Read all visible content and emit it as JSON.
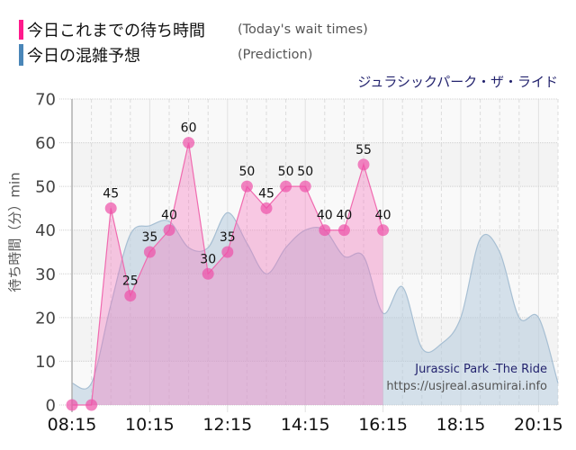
{
  "legend": {
    "items": [
      {
        "label": "今日これまでの待ち時間",
        "label_en": "(Today's wait times)",
        "color": "#ff1a8c"
      },
      {
        "label": "今日の混雑予想",
        "label_en": "(Prediction)",
        "color": "#4a86b8"
      }
    ]
  },
  "chart_data": {
    "type": "area",
    "title": "ジュラシックパーク・ザ・ライド",
    "xlabel": "",
    "ylabel": "待ち時間（分）min",
    "ylim": [
      0,
      70
    ],
    "yticks": [
      0,
      10,
      20,
      30,
      40,
      50,
      60,
      70
    ],
    "xticks": [
      "08:15",
      "10:15",
      "12:15",
      "14:15",
      "16:15",
      "18:15",
      "20:15"
    ],
    "x": [
      "08:15",
      "08:45",
      "09:15",
      "09:45",
      "10:15",
      "10:45",
      "11:15",
      "11:45",
      "12:15",
      "12:45",
      "13:15",
      "13:45",
      "14:15",
      "14:45",
      "15:15",
      "15:45",
      "16:15",
      "16:45",
      "17:15",
      "17:45",
      "18:15",
      "18:45",
      "19:15",
      "19:45",
      "20:15",
      "20:45"
    ],
    "grid": true,
    "legend_position": "top-left",
    "series": [
      {
        "name": "今日これまでの待ち時間 (Today's wait times)",
        "line_color": "#f06aaf",
        "fill_color": "rgba(245,110,185,0.35)",
        "marker_color": "rgba(238,80,168,0.7)",
        "data_labels": true,
        "values": [
          0,
          0,
          45,
          25,
          35,
          40,
          60,
          30,
          35,
          50,
          45,
          50,
          50,
          40,
          40,
          55,
          40
        ]
      },
      {
        "name": "今日の混雑予想 (Prediction)",
        "line_color": "#a7bfd3",
        "fill_color": "rgba(176,200,220,0.5)",
        "data_labels": false,
        "values": [
          5,
          5,
          23,
          39,
          41,
          42,
          36,
          36,
          44,
          37,
          30,
          36,
          40,
          40,
          34,
          34,
          21,
          27,
          13,
          14,
          20,
          38,
          35,
          20,
          20,
          5
        ]
      }
    ],
    "annotations": [
      {
        "text": "Jurassic Park -The Ride"
      },
      {
        "text": "https://usjreal.asumirai.info"
      }
    ]
  }
}
